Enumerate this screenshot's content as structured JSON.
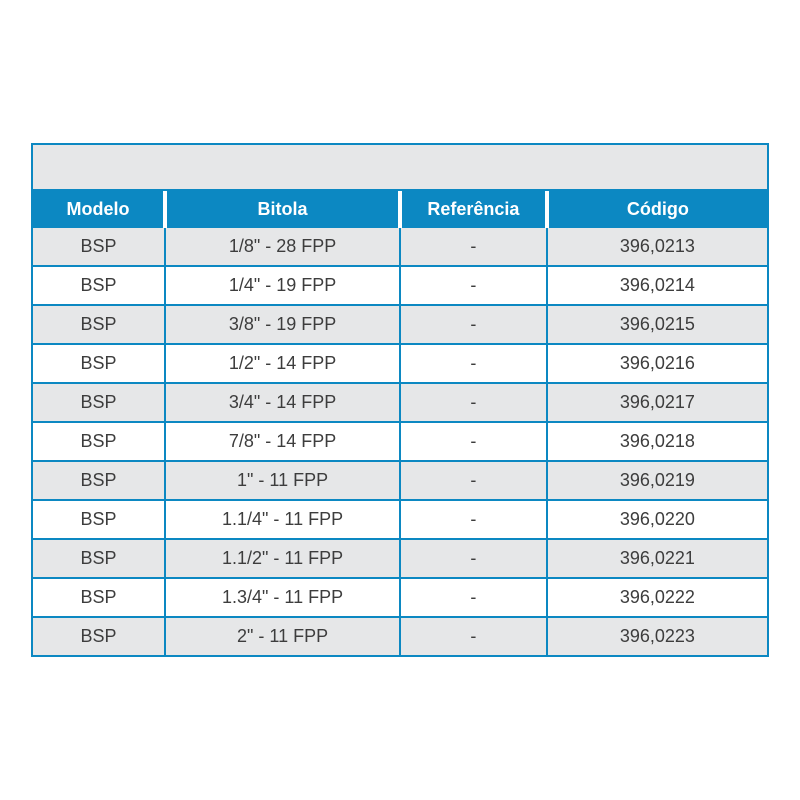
{
  "style": {
    "border_color": "#0c88c2",
    "header_bg": "#0c88c2",
    "header_text_color": "#ffffff",
    "row_odd_bg": "#e6e7e8",
    "row_even_bg": "#ffffff",
    "top_band_bg": "#e6e7e8",
    "cell_text_color": "#3d3d3d",
    "font_size_header": 18,
    "font_size_cell": 18,
    "col_widths_pct": [
      18,
      32,
      20,
      30
    ]
  },
  "table": {
    "columns": [
      "Modelo",
      "Bitola",
      "Referência",
      "Código"
    ],
    "rows": [
      [
        "BSP",
        "1/8\" - 28 FPP",
        "-",
        "396,0213"
      ],
      [
        "BSP",
        "1/4\" - 19 FPP",
        "-",
        "396,0214"
      ],
      [
        "BSP",
        "3/8\" - 19 FPP",
        "-",
        "396,0215"
      ],
      [
        "BSP",
        "1/2\" - 14 FPP",
        "-",
        "396,0216"
      ],
      [
        "BSP",
        "3/4\" - 14 FPP",
        "-",
        "396,0217"
      ],
      [
        "BSP",
        "7/8\" - 14 FPP",
        "-",
        "396,0218"
      ],
      [
        "BSP",
        "1\" - 11 FPP",
        "-",
        "396,0219"
      ],
      [
        "BSP",
        "1.1/4\" - 11 FPP",
        "-",
        "396,0220"
      ],
      [
        "BSP",
        "1.1/2\" - 11 FPP",
        "-",
        "396,0221"
      ],
      [
        "BSP",
        "1.3/4\" - 11 FPP",
        "-",
        "396,0222"
      ],
      [
        "BSP",
        "2\" - 11 FPP",
        "-",
        "396,0223"
      ]
    ]
  }
}
